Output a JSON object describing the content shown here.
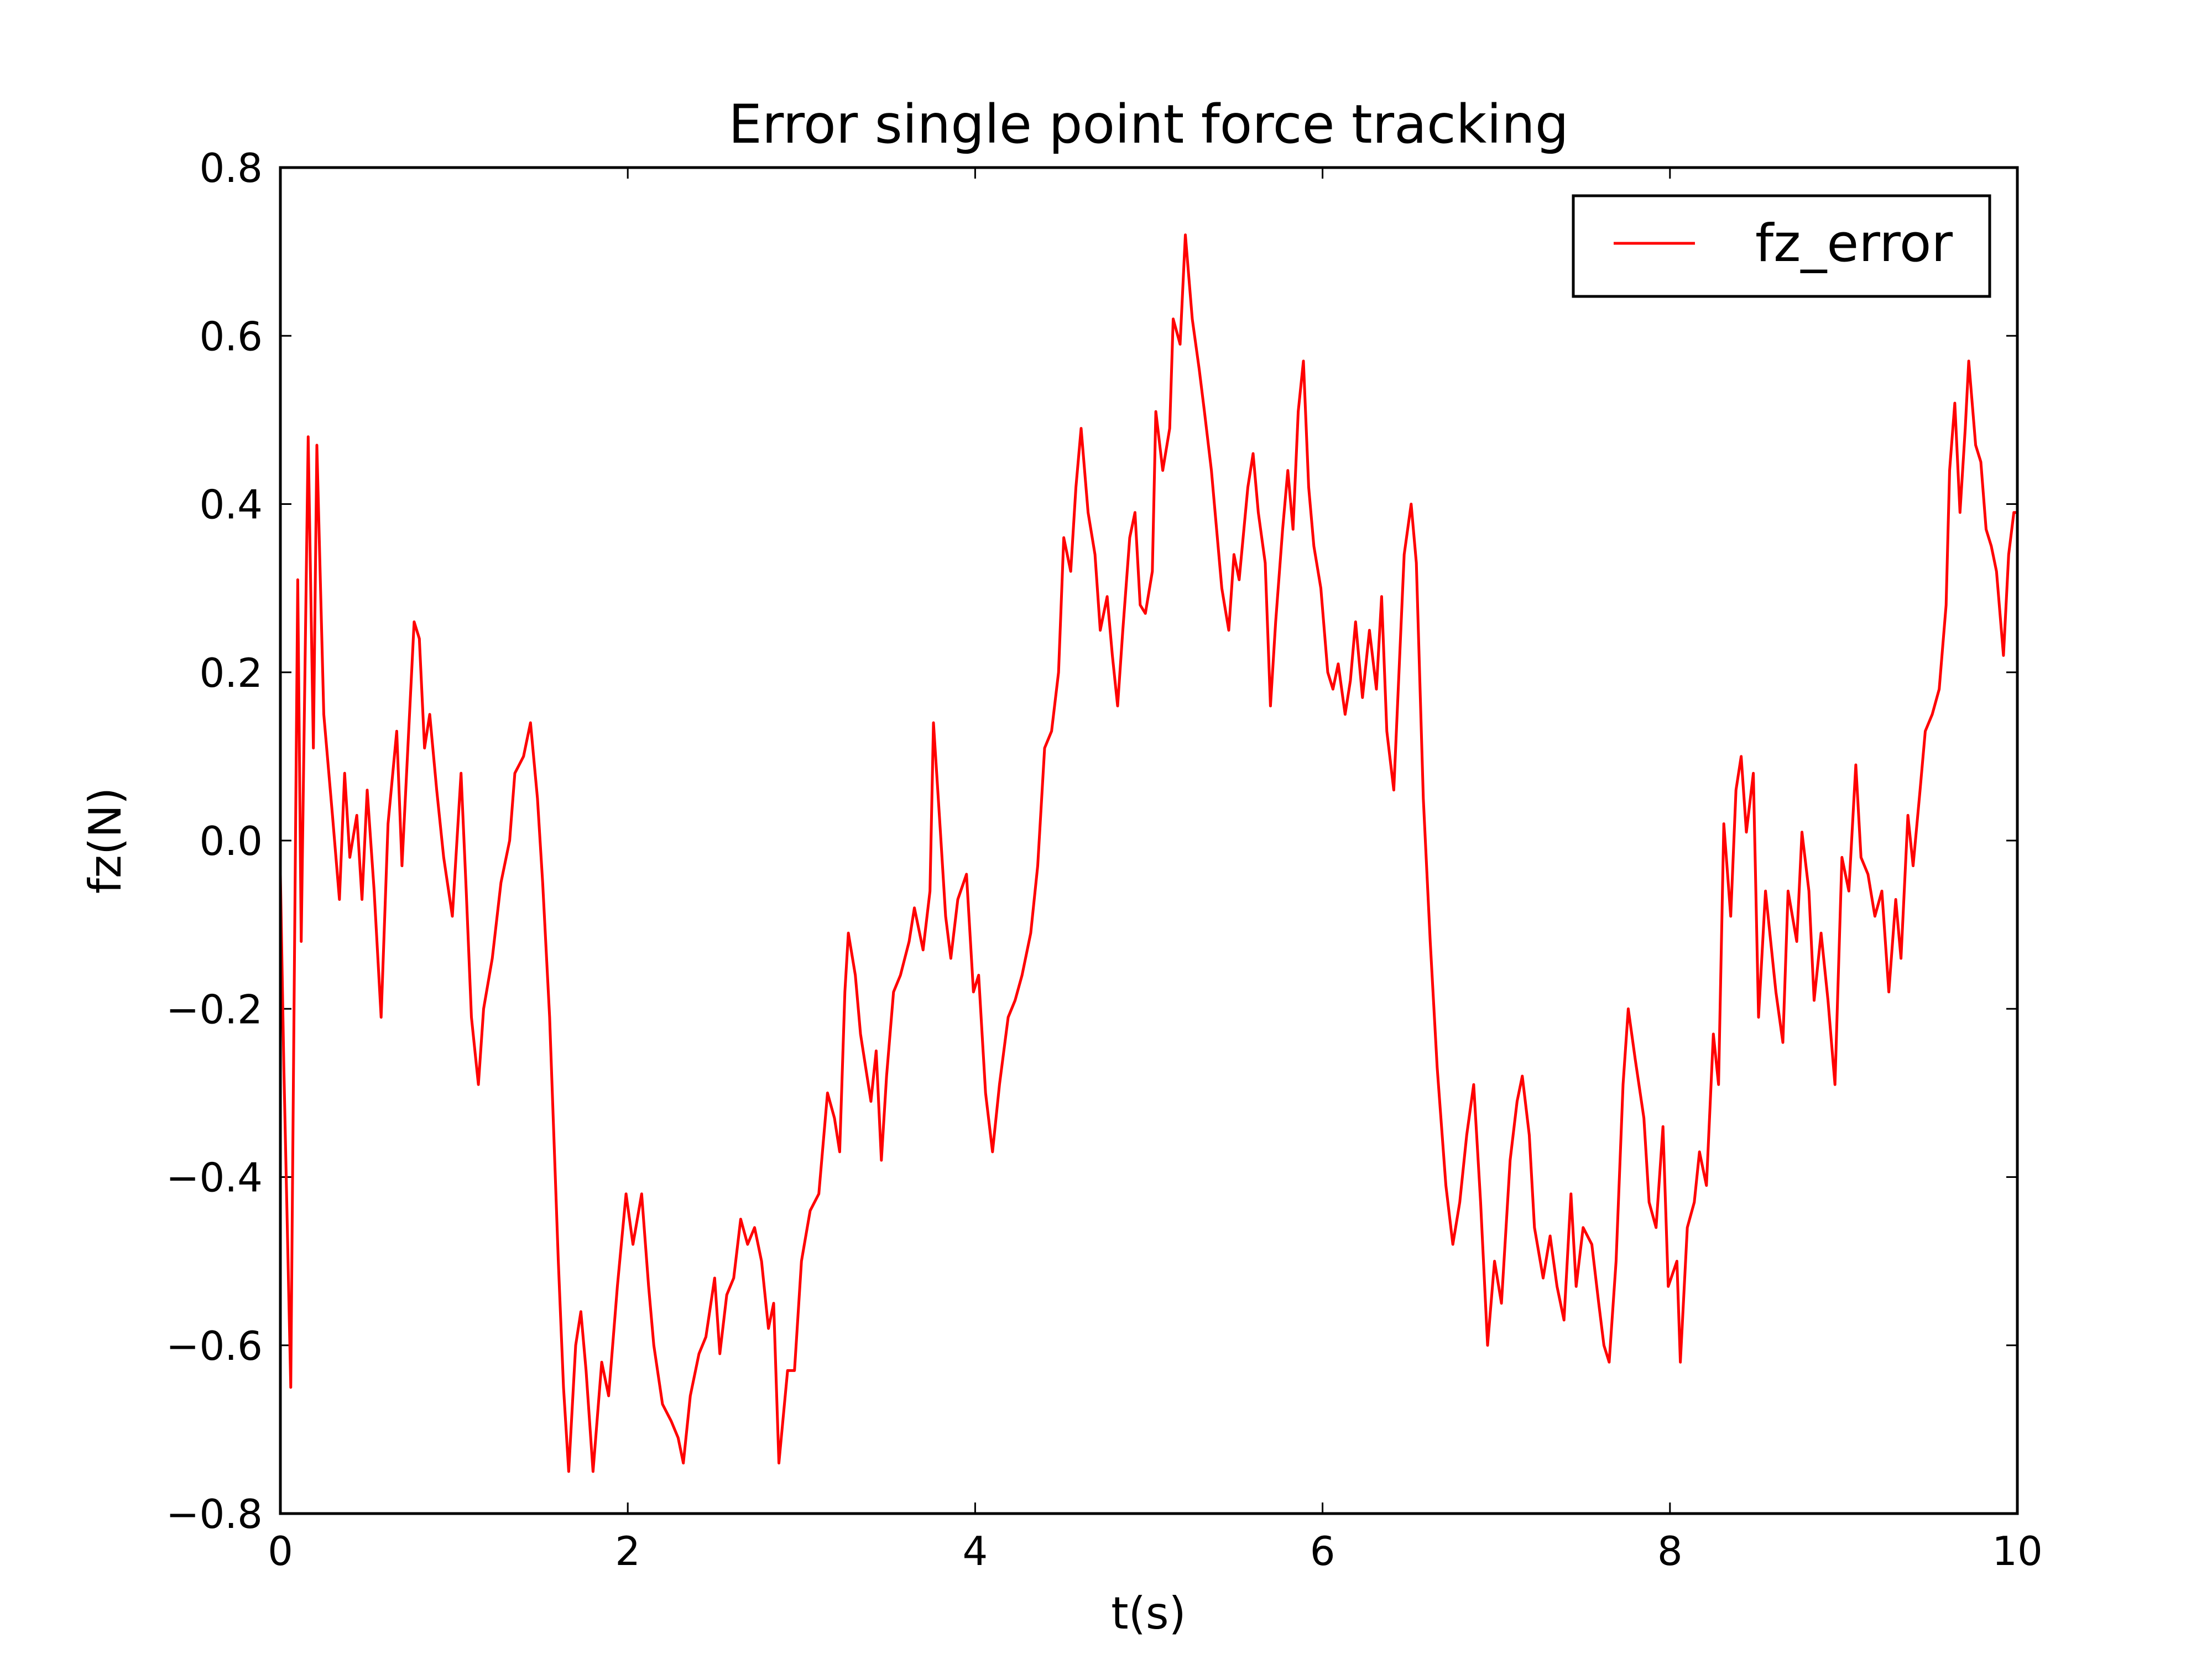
{
  "chart_data": {
    "type": "line",
    "title": "Error single point force tracking",
    "x_label": "t(s)",
    "y_label": "fz(N)",
    "x": [
      0,
      0.02,
      0.06,
      0.1,
      0.12,
      0.16,
      0.19,
      0.21,
      0.25,
      0.3,
      0.34,
      0.37,
      0.4,
      0.44,
      0.47,
      0.5,
      0.54,
      0.58,
      0.62,
      0.67,
      0.7,
      0.77,
      0.8,
      0.83,
      0.86,
      0.9,
      0.94,
      0.99,
      1.04,
      1.07,
      1.1,
      1.14,
      1.17,
      1.22,
      1.27,
      1.32,
      1.35,
      1.4,
      1.44,
      1.48,
      1.51,
      1.55,
      1.6,
      1.63,
      1.66,
      1.7,
      1.73,
      1.76,
      1.8,
      1.85,
      1.89,
      1.94,
      1.99,
      2.03,
      2.08,
      2.12,
      2.15,
      2.2,
      2.25,
      2.29,
      2.32,
      2.36,
      2.41,
      2.45,
      2.5,
      2.53,
      2.57,
      2.61,
      2.65,
      2.69,
      2.73,
      2.77,
      2.81,
      2.84,
      2.87,
      2.92,
      2.96,
      3.0,
      3.05,
      3.1,
      3.15,
      3.19,
      3.22,
      3.25,
      3.27,
      3.31,
      3.34,
      3.4,
      3.43,
      3.46,
      3.49,
      3.53,
      3.57,
      3.62,
      3.65,
      3.7,
      3.74,
      3.76,
      3.8,
      3.83,
      3.86,
      3.9,
      3.95,
      3.99,
      4.02,
      4.06,
      4.1,
      4.14,
      4.19,
      4.23,
      4.27,
      4.32,
      4.36,
      4.4,
      4.44,
      4.48,
      4.51,
      4.55,
      4.58,
      4.61,
      4.65,
      4.69,
      4.72,
      4.76,
      4.79,
      4.82,
      4.85,
      4.89,
      4.92,
      4.95,
      4.98,
      5.02,
      5.04,
      5.08,
      5.12,
      5.14,
      5.18,
      5.21,
      5.25,
      5.29,
      5.32,
      5.36,
      5.39,
      5.42,
      5.46,
      5.49,
      5.52,
      5.57,
      5.6,
      5.63,
      5.67,
      5.7,
      5.73,
      5.77,
      5.8,
      5.83,
      5.86,
      5.89,
      5.92,
      5.95,
      5.99,
      6.03,
      6.06,
      6.09,
      6.13,
      6.16,
      6.19,
      6.23,
      6.27,
      6.31,
      6.34,
      6.37,
      6.41,
      6.44,
      6.47,
      6.51,
      6.54,
      6.58,
      6.62,
      6.66,
      6.71,
      6.75,
      6.79,
      6.83,
      6.87,
      6.91,
      6.95,
      6.99,
      7.03,
      7.08,
      7.12,
      7.15,
      7.19,
      7.22,
      7.27,
      7.31,
      7.35,
      7.39,
      7.43,
      7.46,
      7.5,
      7.55,
      7.59,
      7.62,
      7.65,
      7.69,
      7.73,
      7.76,
      7.8,
      7.85,
      7.88,
      7.92,
      7.96,
      7.99,
      8.04,
      8.06,
      8.1,
      8.14,
      8.17,
      8.21,
      8.25,
      8.28,
      8.31,
      8.35,
      8.38,
      8.41,
      8.44,
      8.48,
      8.51,
      8.55,
      8.58,
      8.61,
      8.65,
      8.68,
      8.73,
      8.76,
      8.8,
      8.83,
      8.87,
      8.91,
      8.95,
      8.99,
      9.03,
      9.07,
      9.1,
      9.14,
      9.18,
      9.22,
      9.26,
      9.3,
      9.33,
      9.37,
      9.4,
      9.44,
      9.47,
      9.51,
      9.55,
      9.59,
      9.61,
      9.64,
      9.67,
      9.7,
      9.72,
      9.76,
      9.79,
      9.82,
      9.85,
      9.88,
      9.92,
      9.95,
      9.98,
      10.0
    ],
    "series": [
      {
        "name": "fz_error",
        "color": "#ff0000",
        "values": [
          -0.04,
          -0.27,
          -0.65,
          0.31,
          -0.12,
          0.48,
          0.11,
          0.47,
          0.15,
          0.03,
          -0.07,
          0.08,
          -0.02,
          0.03,
          -0.07,
          0.06,
          -0.06,
          -0.21,
          0.02,
          0.13,
          -0.03,
          0.26,
          0.24,
          0.11,
          0.15,
          0.06,
          -0.02,
          -0.09,
          0.08,
          -0.06,
          -0.21,
          -0.29,
          -0.2,
          -0.14,
          -0.05,
          0.0,
          0.08,
          0.1,
          0.14,
          0.05,
          -0.05,
          -0.21,
          -0.5,
          -0.65,
          -0.75,
          -0.6,
          -0.56,
          -0.63,
          -0.75,
          -0.62,
          -0.66,
          -0.53,
          -0.42,
          -0.48,
          -0.42,
          -0.53,
          -0.6,
          -0.67,
          -0.69,
          -0.71,
          -0.74,
          -0.66,
          -0.61,
          -0.59,
          -0.52,
          -0.61,
          -0.54,
          -0.52,
          -0.45,
          -0.48,
          -0.46,
          -0.5,
          -0.58,
          -0.55,
          -0.74,
          -0.63,
          -0.63,
          -0.5,
          -0.44,
          -0.42,
          -0.3,
          -0.33,
          -0.37,
          -0.18,
          -0.11,
          -0.16,
          -0.23,
          -0.31,
          -0.25,
          -0.38,
          -0.28,
          -0.18,
          -0.16,
          -0.12,
          -0.08,
          -0.13,
          -0.06,
          0.14,
          0.01,
          -0.09,
          -0.14,
          -0.07,
          -0.04,
          -0.18,
          -0.16,
          -0.3,
          -0.37,
          -0.29,
          -0.21,
          -0.19,
          -0.16,
          -0.11,
          -0.03,
          0.11,
          0.13,
          0.2,
          0.36,
          0.32,
          0.42,
          0.49,
          0.39,
          0.34,
          0.25,
          0.29,
          0.22,
          0.16,
          0.25,
          0.36,
          0.39,
          0.28,
          0.27,
          0.32,
          0.51,
          0.44,
          0.49,
          0.62,
          0.59,
          0.72,
          0.62,
          0.56,
          0.51,
          0.44,
          0.37,
          0.3,
          0.25,
          0.34,
          0.31,
          0.42,
          0.46,
          0.39,
          0.33,
          0.16,
          0.26,
          0.37,
          0.44,
          0.37,
          0.51,
          0.57,
          0.42,
          0.35,
          0.3,
          0.2,
          0.18,
          0.21,
          0.15,
          0.19,
          0.26,
          0.17,
          0.25,
          0.18,
          0.29,
          0.13,
          0.06,
          0.2,
          0.34,
          0.4,
          0.33,
          0.05,
          -0.12,
          -0.27,
          -0.41,
          -0.48,
          -0.43,
          -0.35,
          -0.29,
          -0.43,
          -0.6,
          -0.5,
          -0.55,
          -0.38,
          -0.31,
          -0.28,
          -0.35,
          -0.46,
          -0.52,
          -0.47,
          -0.53,
          -0.57,
          -0.42,
          -0.53,
          -0.46,
          -0.48,
          -0.55,
          -0.6,
          -0.62,
          -0.5,
          -0.29,
          -0.2,
          -0.26,
          -0.33,
          -0.43,
          -0.46,
          -0.34,
          -0.53,
          -0.5,
          -0.62,
          -0.46,
          -0.43,
          -0.37,
          -0.41,
          -0.23,
          -0.29,
          0.02,
          -0.09,
          0.06,
          0.1,
          0.01,
          0.08,
          -0.21,
          -0.06,
          -0.12,
          -0.18,
          -0.24,
          -0.06,
          -0.12,
          0.01,
          -0.06,
          -0.19,
          -0.11,
          -0.19,
          -0.29,
          -0.02,
          -0.06,
          0.09,
          -0.02,
          -0.04,
          -0.09,
          -0.06,
          -0.18,
          -0.07,
          -0.14,
          0.03,
          -0.03,
          0.06,
          0.13,
          0.15,
          0.18,
          0.28,
          0.44,
          0.52,
          0.39,
          0.49,
          0.57,
          0.47,
          0.45,
          0.37,
          0.35,
          0.32,
          0.22,
          0.34,
          0.39,
          0.39
        ]
      }
    ],
    "xlim": [
      0,
      10
    ],
    "xticks": [
      0,
      2,
      4,
      6,
      8,
      10
    ],
    "ylim": [
      -0.8,
      0.8
    ],
    "yticks": [
      {
        "value": -0.8,
        "label": "−0.8"
      },
      {
        "value": -0.6,
        "label": "−0.6"
      },
      {
        "value": -0.4,
        "label": "−0.4"
      },
      {
        "value": -0.2,
        "label": "−0.2"
      },
      {
        "value": 0,
        "label": "0.0"
      },
      0.2,
      0.4,
      0.6,
      0.8
    ],
    "grid": false,
    "legend": "upper right"
  }
}
